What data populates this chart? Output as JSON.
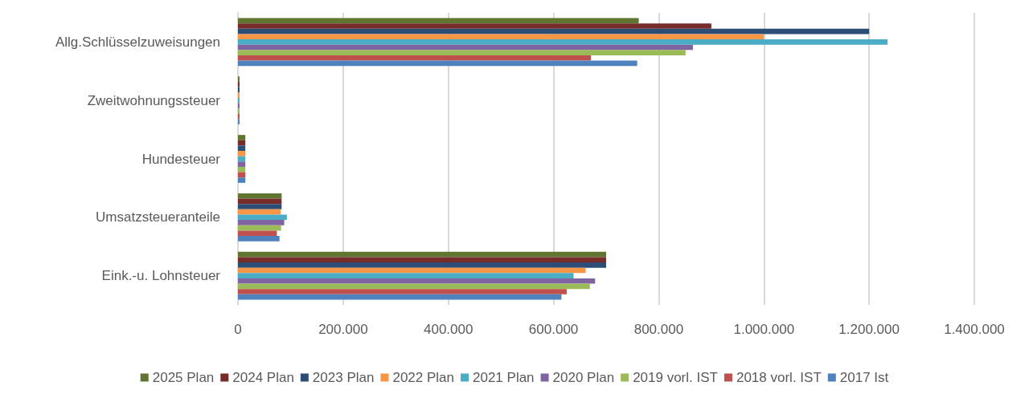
{
  "chart_data": {
    "type": "bar",
    "orientation": "horizontal",
    "categories": [
      "Allg.Schlüsselzuweisungen",
      "Zweitwohnungssteuer",
      "Hundesteuer",
      "Umsatzsteueranteile",
      "Eink.-u. Lohnsteuer"
    ],
    "series": [
      {
        "name": "2025 Plan",
        "color": "#5f7530",
        "values": [
          762000,
          3000,
          14000,
          83000,
          700000
        ]
      },
      {
        "name": "2024 Plan",
        "color": "#772c2a",
        "values": [
          900000,
          3000,
          14000,
          83000,
          700000
        ]
      },
      {
        "name": "2023 Plan",
        "color": "#2c4d75",
        "values": [
          1200000,
          3000,
          14000,
          83000,
          700000
        ]
      },
      {
        "name": "2022 Plan",
        "color": "#f79646",
        "values": [
          1000000,
          3000,
          14000,
          81000,
          661000
        ]
      },
      {
        "name": "2021 Plan",
        "color": "#4bacc6",
        "values": [
          1235000,
          3000,
          14000,
          93000,
          638000
        ]
      },
      {
        "name": "2020 Plan",
        "color": "#8064a2",
        "values": [
          865000,
          3000,
          14000,
          88000,
          679000
        ]
      },
      {
        "name": "2019 vorl. IST",
        "color": "#9bbb59",
        "values": [
          851000,
          3000,
          14000,
          82000,
          669000
        ]
      },
      {
        "name": "2018 vorl. IST",
        "color": "#c0504d",
        "values": [
          671000,
          3000,
          14000,
          74000,
          625000
        ]
      },
      {
        "name": "2017 Ist",
        "color": "#4f81bd",
        "values": [
          759000,
          3000,
          14000,
          79000,
          615000
        ]
      }
    ],
    "xlim": [
      0,
      1400000
    ],
    "xticks": [
      0,
      {
        "value": 200000,
        "label": "200.000"
      },
      {
        "value": 400000,
        "label": "400.000"
      },
      {
        "value": 600000,
        "label": "600.000"
      },
      {
        "value": 800000,
        "label": "800.000"
      },
      {
        "value": 1000000,
        "label": "1.000.000"
      },
      {
        "value": 1200000,
        "label": "1.200.000"
      },
      {
        "value": 1400000,
        "label": "1.400.000"
      }
    ],
    "grid": "x",
    "legend": "bottom"
  }
}
